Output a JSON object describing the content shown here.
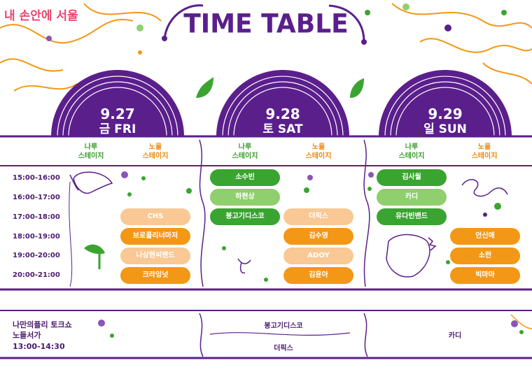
{
  "logo": "내 손안에 서울",
  "title": "TIME TABLE",
  "days": [
    {
      "date": "9.27",
      "day": "금 FRI"
    },
    {
      "date": "9.28",
      "day": "토 SAT"
    },
    {
      "date": "9.29",
      "day": "일 SUN"
    }
  ],
  "stages": {
    "naru": "나루\n스테이지",
    "noeul": "노을\n스테이지"
  },
  "times": [
    "15:00-16:00",
    "16:00-17:00",
    "17:00-18:00",
    "18:00-19:00",
    "19:00-20:00",
    "20:00-21:00"
  ],
  "performances": {
    "fri_noeul": [
      "CHS",
      "브로콜리너마저",
      "나상현씨밴드",
      "크라잉넛"
    ],
    "sat_naru": [
      "소수빈",
      "하현상",
      "봉고기디스코"
    ],
    "sat_noeul": [
      "더픽스",
      "김수영",
      "ADOY",
      "김윤아"
    ],
    "sun_naru": [
      "김사월",
      "카디",
      "유다빈밴드"
    ],
    "sun_noeul": [
      "안신애",
      "소란",
      "빅마마"
    ]
  },
  "talk": {
    "title": "나만의플리 토크쇼",
    "venue": "노들서가",
    "time": "13:00-14:30",
    "sat_guests": [
      "봉고기디스코",
      "더픽스"
    ],
    "sun_guest": "카디"
  },
  "colors": {
    "purple": "#5b1f8c",
    "green": "#3aa431",
    "light_green": "#8fcf6e",
    "orange": "#f39716",
    "light_orange": "#f9c894"
  }
}
